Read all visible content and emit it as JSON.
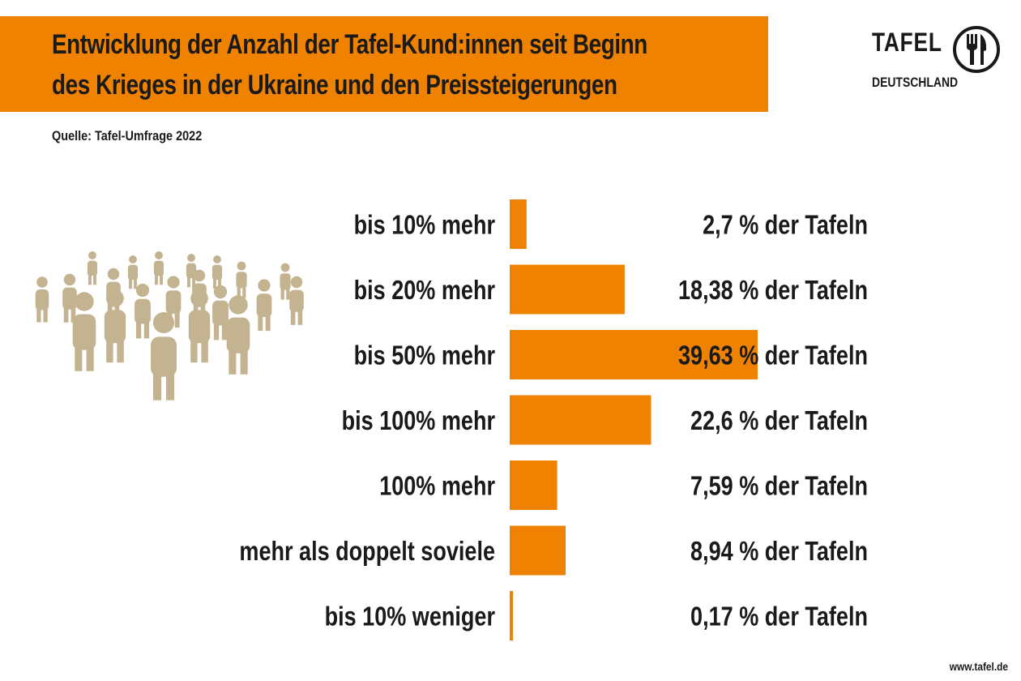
{
  "header": {
    "title_line1": "Entwicklung der Anzahl der Tafel-Kund:innen seit Beginn",
    "title_line2": "des Krieges in der Ukraine und den Preissteigerungen",
    "source": "Quelle: Tafel-Umfrage 2022"
  },
  "logo": {
    "name": "TAFEL",
    "sub": "DEUTSCHLAND",
    "icon": "plate-fork-knife-icon"
  },
  "illustration": {
    "icon": "people-crowd-icon"
  },
  "footer": {
    "url": "www.tafel.de"
  },
  "colors": {
    "accent": "#ef8200",
    "people": "#c3b391",
    "text": "#1a1a1a"
  },
  "chart_data": {
    "type": "bar",
    "orientation": "horizontal",
    "title": "Entwicklung der Anzahl der Tafel-Kund:innen seit Beginn des Krieges in der Ukraine und den Preissteigerungen",
    "categories": [
      "bis 10% mehr",
      "bis 20% mehr",
      "bis 50% mehr",
      "bis 100% mehr",
      "100% mehr",
      "mehr als doppelt soviele",
      "bis 10% weniger"
    ],
    "values": [
      2.7,
      18.38,
      39.63,
      22.6,
      7.59,
      8.94,
      0.17
    ],
    "value_numbers": [
      "2,7",
      "18,38",
      "39,63",
      "22,6",
      "7,59",
      "8,94",
      "0,17"
    ],
    "value_suffix": "% der Tafeln",
    "xlim": [
      0,
      40
    ],
    "grid": false,
    "legend": "none"
  }
}
